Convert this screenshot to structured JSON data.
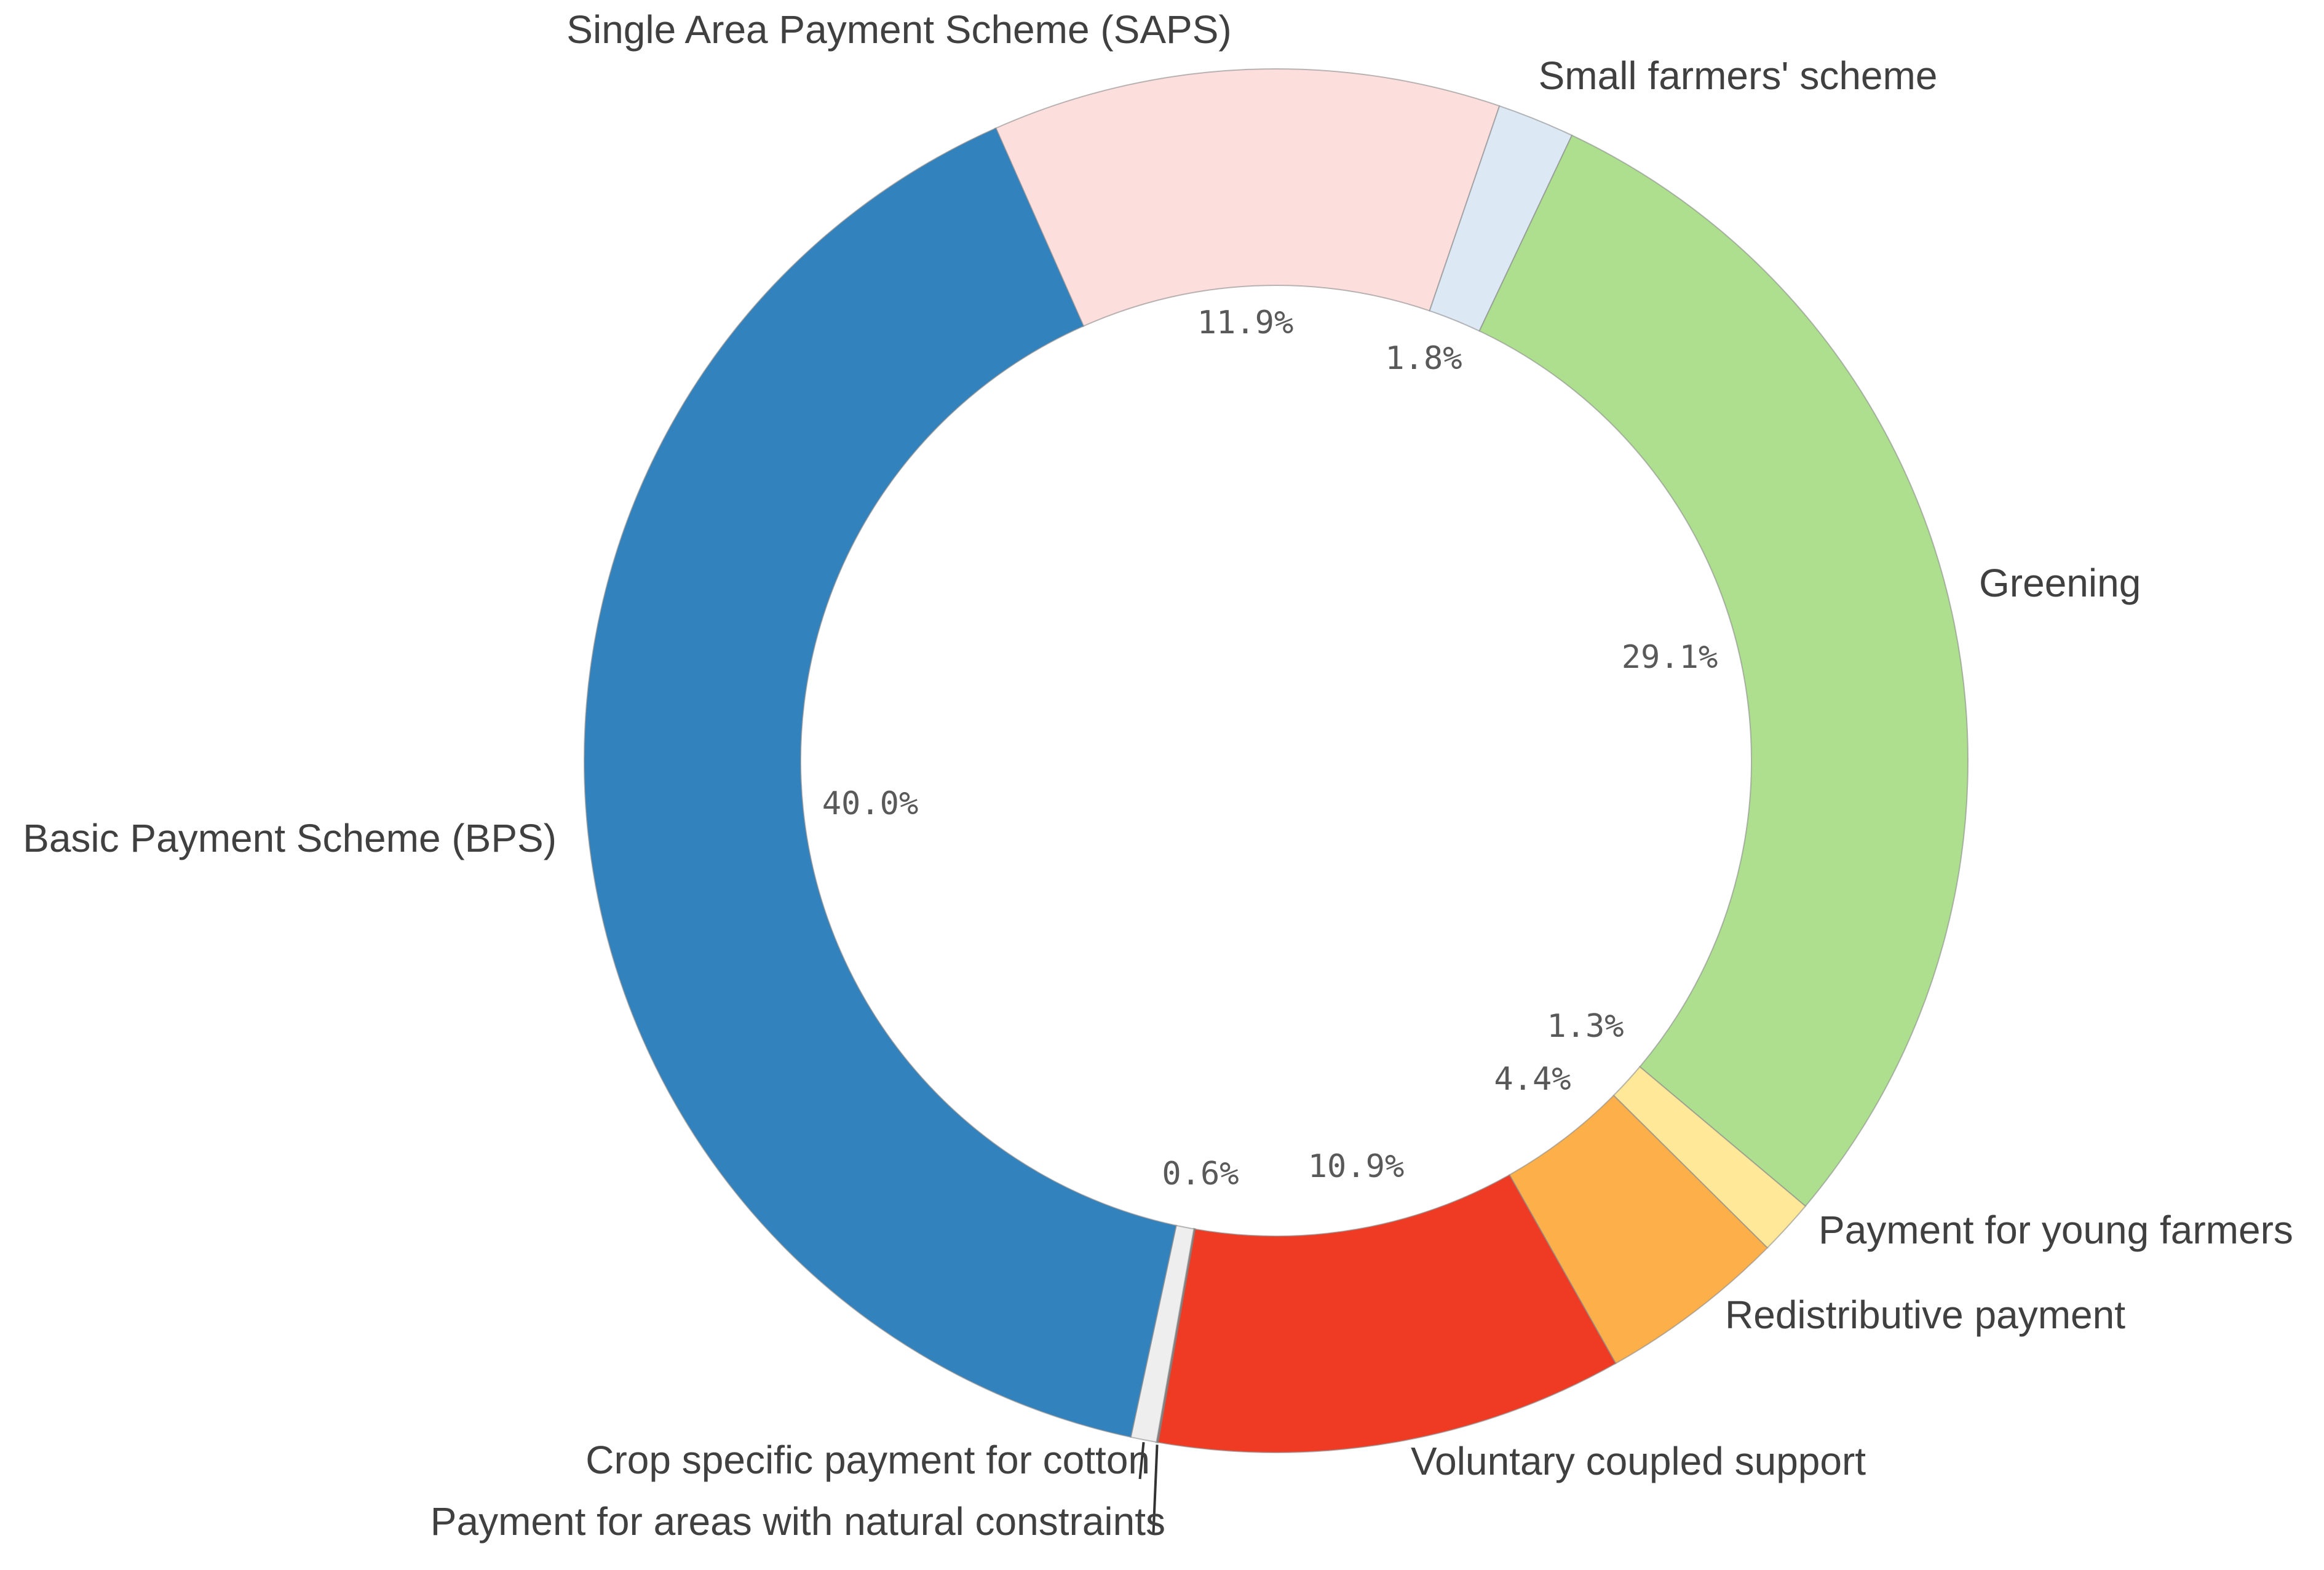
{
  "chart_data": {
    "type": "pie",
    "subtype": "donut",
    "title": "",
    "legend": "none",
    "categories": [
      "Single Area Payment Scheme (SAPS)",
      "Small farmers' scheme",
      "Greening",
      "Payment for young farmers",
      "Redistributive payment",
      "Voluntary coupled support",
      "Payment for areas with natural constraints",
      "Crop specific payment for cotton",
      "Basic Payment Scheme (BPS)"
    ],
    "values": [
      11.9,
      1.8,
      29.1,
      1.3,
      4.4,
      10.9,
      0.0,
      0.6,
      40.0
    ],
    "value_labels": [
      "11.9%",
      "1.8%",
      "29.1%",
      "1.3%",
      "4.4%",
      "10.9%",
      "",
      "0.6%",
      "40.0%"
    ],
    "colors": [
      "#fcdedd",
      "#dde8f5",
      "#addf8f",
      "#ffe999",
      "#fdb04a",
      "#ef3b24",
      "#7f7f7f",
      "#eeeeee",
      "#3282be"
    ]
  }
}
